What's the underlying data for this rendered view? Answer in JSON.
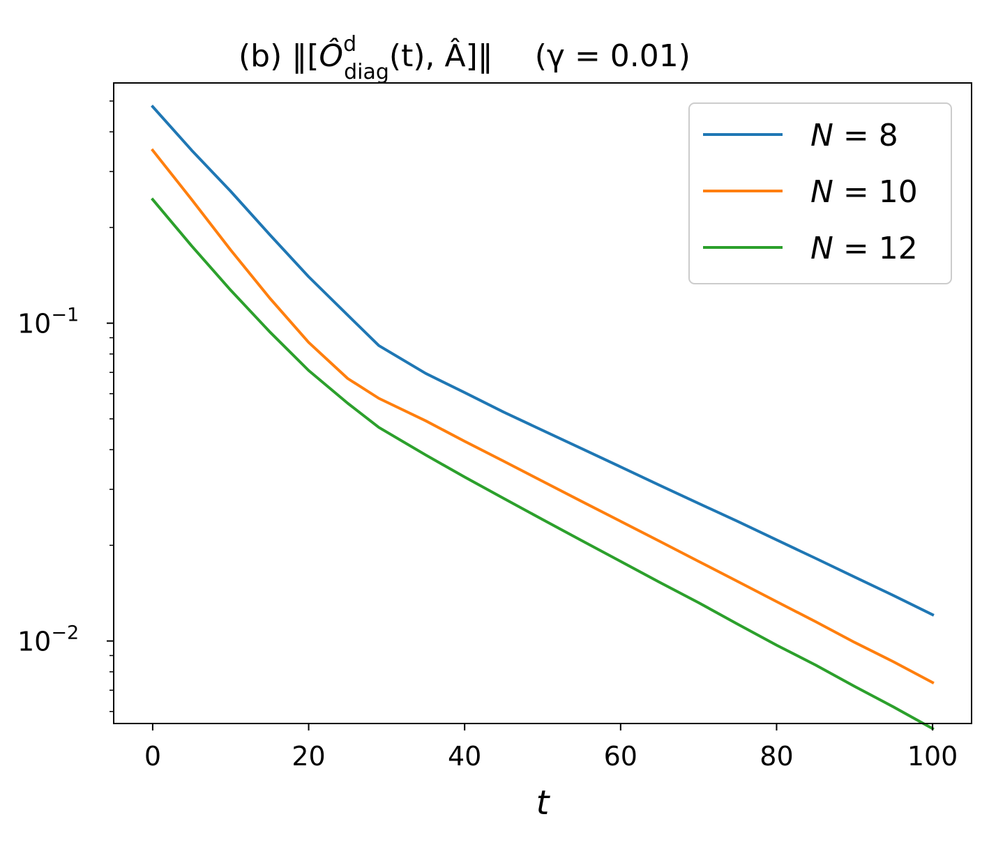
{
  "chart_data": {
    "type": "line",
    "title": "(b) ‖[Ô^d_diag(t), Â]‖   (γ = 0.01)",
    "title_parts": {
      "prefix": "(b) ‖[",
      "operator": "Ô",
      "superscript": "d",
      "subscript": "diag",
      "argument": "(t), Â]‖",
      "parameter": "(γ = 0.01)"
    },
    "xlabel": "t",
    "ylabel": "",
    "xlim": [
      -5,
      105
    ],
    "ylim": [
      0.0055,
      0.57
    ],
    "yscale": "log",
    "grid": false,
    "legend_position": "top-right",
    "x_ticks": [
      0,
      20,
      40,
      60,
      80,
      100
    ],
    "y_ticks": [
      {
        "value": 0.1,
        "base": "10",
        "exponent": "−1"
      },
      {
        "value": 0.01,
        "base": "10",
        "exponent": "−2"
      }
    ],
    "x": [
      0,
      5,
      10,
      15,
      20,
      25,
      29,
      35,
      40,
      45,
      50,
      55,
      60,
      65,
      70,
      75,
      80,
      85,
      90,
      95,
      100
    ],
    "series": [
      {
        "name": "N = 8",
        "label_var": "N",
        "label_value": "8",
        "color": "#1f77b4",
        "values": [
          0.48,
          0.35,
          0.26,
          0.19,
          0.14,
          0.106,
          0.085,
          0.0695,
          0.0605,
          0.0525,
          0.046,
          0.0403,
          0.0353,
          0.0309,
          0.0271,
          0.0238,
          0.0208,
          0.0182,
          0.0159,
          0.0139,
          0.0121
        ]
      },
      {
        "name": "N = 10",
        "label_var": "N",
        "label_value": "10",
        "color": "#ff7f0e",
        "values": [
          0.35,
          0.245,
          0.17,
          0.12,
          0.087,
          0.067,
          0.058,
          0.0493,
          0.0425,
          0.0368,
          0.0318,
          0.0275,
          0.0238,
          0.0206,
          0.0178,
          0.0154,
          0.0133,
          0.0115,
          0.0099,
          0.0086,
          0.0074
        ]
      },
      {
        "name": "N = 12",
        "label_var": "N",
        "label_value": "12",
        "color": "#2ca02c",
        "values": [
          0.245,
          0.175,
          0.127,
          0.094,
          0.071,
          0.056,
          0.047,
          0.0385,
          0.0328,
          0.0281,
          0.0241,
          0.0207,
          0.0178,
          0.0153,
          0.0132,
          0.0113,
          0.0097,
          0.0084,
          0.0072,
          0.0062,
          0.0053
        ]
      }
    ]
  }
}
